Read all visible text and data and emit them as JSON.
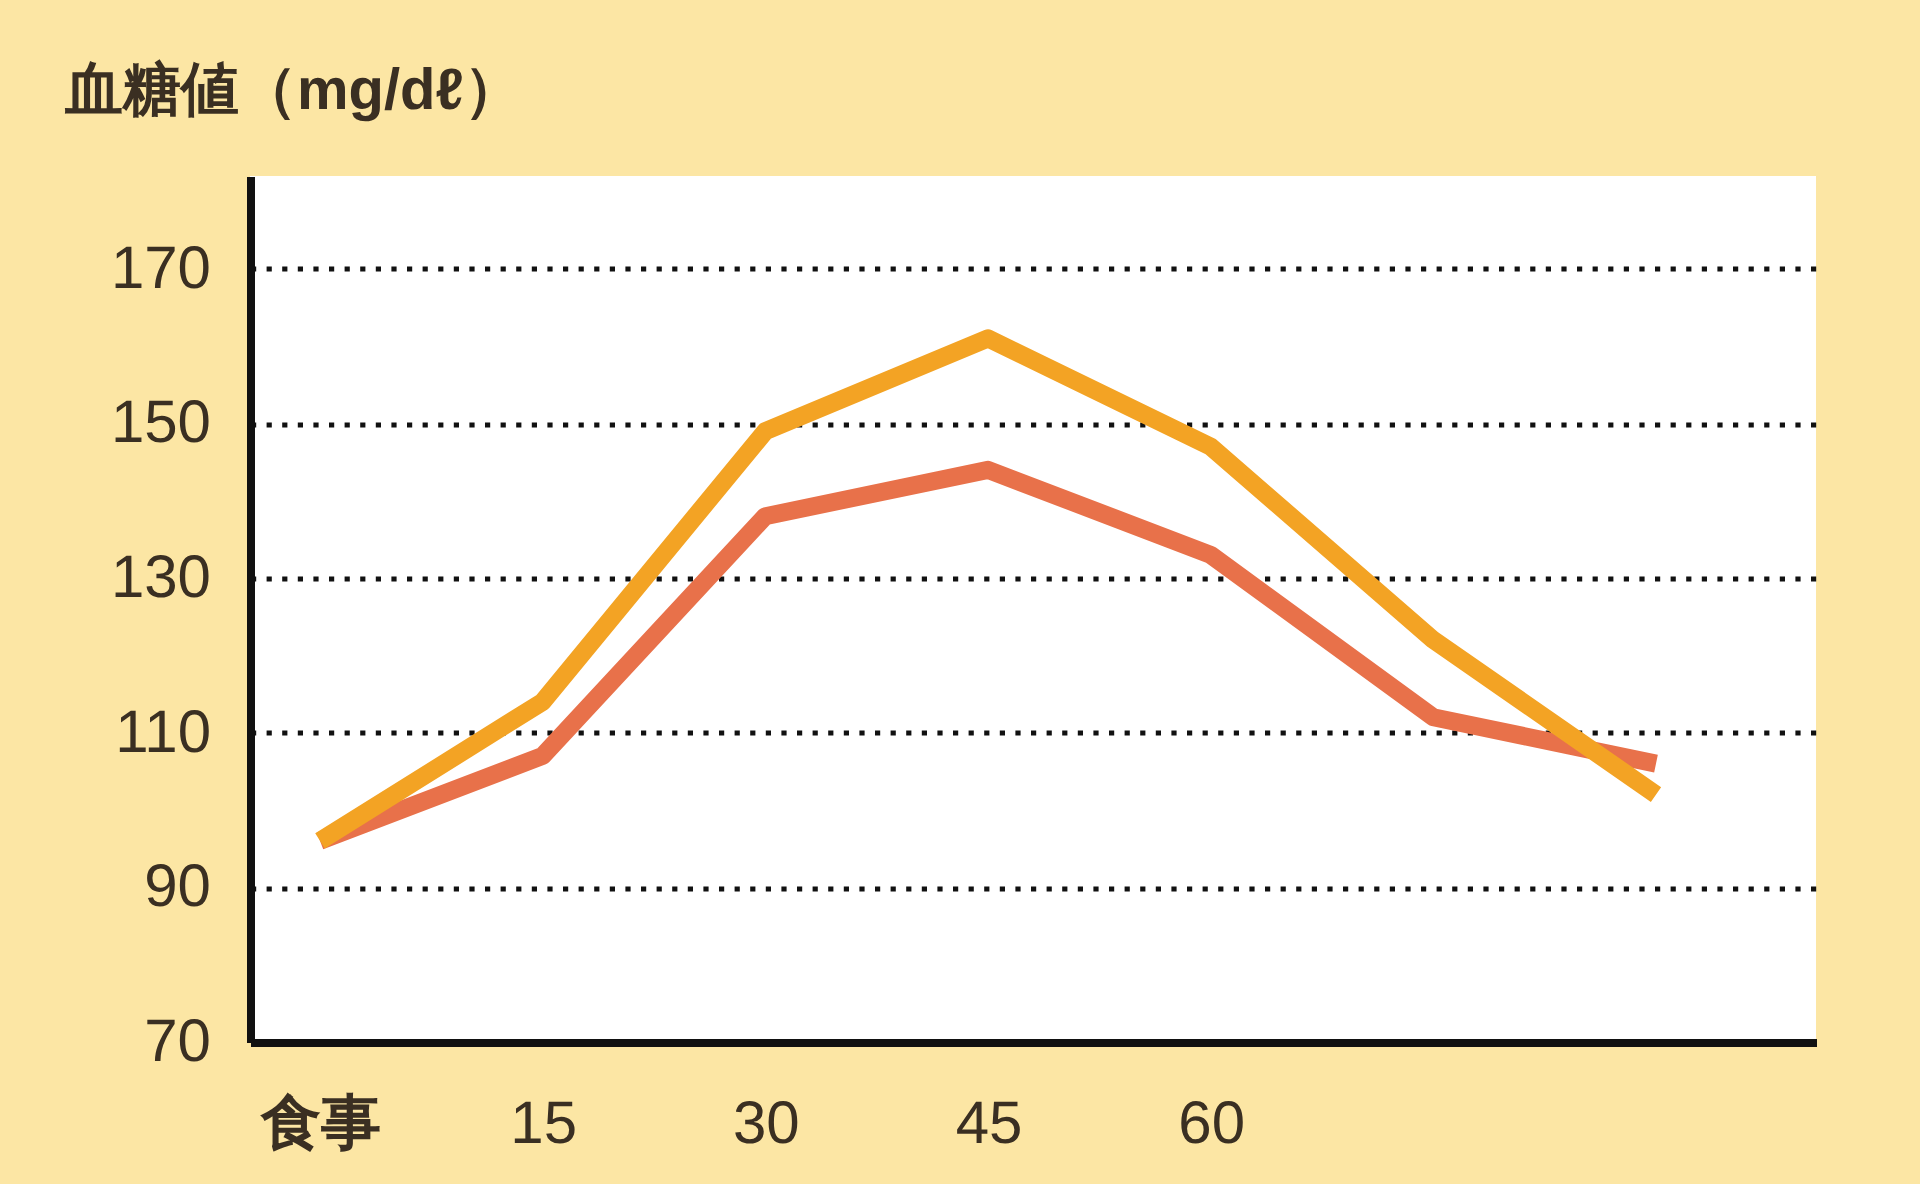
{
  "chart_data": {
    "type": "line",
    "ylabel": "血糖値（mg/dℓ）",
    "categories": [
      "食事",
      "15",
      "30",
      "45",
      "60",
      null,
      null
    ],
    "series": [
      {
        "color": "#e8714a",
        "values": [
          96,
          107,
          138,
          144,
          133,
          112,
          106
        ]
      },
      {
        "color": "#f3a324",
        "values": [
          96,
          114,
          149,
          161,
          147,
          122,
          102
        ]
      }
    ],
    "ylim": [
      70,
      182
    ],
    "yticks": [
      70,
      90,
      110,
      130,
      150,
      170
    ],
    "grid": "y"
  }
}
